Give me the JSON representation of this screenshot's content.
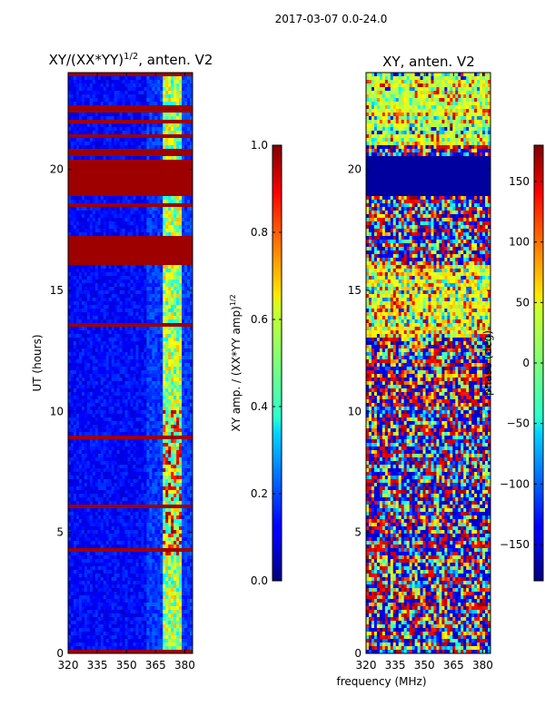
{
  "suptitle": "2017-03-07 0.0-24.0",
  "chart_data": [
    {
      "type": "heatmap",
      "title_main": "XY/(XX*YY)",
      "title_sup": "1/2",
      "title_rest": ", anten. V2",
      "xlabel": "",
      "ylabel": "UT (hours)",
      "xlim": [
        320,
        384
      ],
      "ylim": [
        0,
        24
      ],
      "xticks": [
        "320",
        "335",
        "350",
        "365",
        "380"
      ],
      "xtick_values": [
        320,
        335,
        350,
        365,
        380
      ],
      "yticks": [
        "0",
        "5",
        "10",
        "15",
        "20"
      ],
      "ytick_values": [
        0,
        5,
        10,
        15,
        20
      ],
      "colormap": "jet",
      "colorbar": {
        "label": "XY amp. / (XX*YY amp)",
        "label_sup": "1/2",
        "range": [
          0.0,
          1.0
        ],
        "ticks": [
          "0.0",
          "0.2",
          "0.4",
          "0.6",
          "0.8",
          "1.0"
        ],
        "tick_values": [
          0.0,
          0.2,
          0.4,
          0.6,
          0.8,
          1.0
        ]
      },
      "saturated_bands_hours": [
        [
          16.2,
          17.2
        ],
        [
          18.9,
          20.4
        ],
        [
          20.5,
          20.9
        ],
        [
          21.3,
          21.5
        ],
        [
          21.9,
          22.1
        ],
        [
          22.3,
          22.7
        ],
        [
          23.8,
          24.0
        ],
        [
          0.0,
          0.1
        ]
      ],
      "high_value_channel_range_mhz": [
        369,
        379
      ]
    },
    {
      "type": "heatmap",
      "title": "XY, anten. V2",
      "xlabel": "frequency (MHz)",
      "ylabel": "",
      "xlim": [
        320,
        384
      ],
      "ylim": [
        0,
        24
      ],
      "xticks": [
        "320",
        "335",
        "350",
        "365",
        "380"
      ],
      "xtick_values": [
        320,
        335,
        350,
        365,
        380
      ],
      "yticks": [
        "0",
        "5",
        "10",
        "15",
        "20"
      ],
      "ytick_values": [
        0,
        5,
        10,
        15,
        20
      ],
      "colormap": "jet",
      "colorbar": {
        "label": "phase (deg)",
        "range": [
          -180,
          180
        ],
        "ticks": [
          "150",
          "100",
          "50",
          "0",
          "−50",
          "−100",
          "−150"
        ],
        "tick_values": [
          150,
          100,
          50,
          0,
          -50,
          -100,
          -150
        ]
      },
      "low_value_band_hours": [
        18.9,
        20.6
      ]
    }
  ]
}
